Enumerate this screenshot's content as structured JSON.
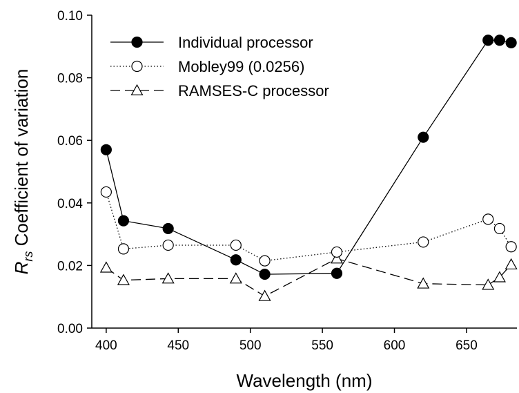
{
  "chart_data": {
    "type": "line",
    "xlabel": "Wavelength (nm)",
    "ylabel": {
      "symbol": "R",
      "subscript": "rs",
      "text": " Coefficient of variation"
    },
    "xlim": [
      390,
      685
    ],
    "ylim": [
      0,
      0.1
    ],
    "x_ticks": [
      400,
      450,
      500,
      550,
      600,
      650
    ],
    "x_tick_labels": [
      "400",
      "450",
      "500",
      "550",
      "600",
      "650"
    ],
    "y_ticks": [
      0,
      0.02,
      0.04,
      0.06,
      0.08,
      0.1
    ],
    "y_tick_labels": [
      "0.00",
      "0.02",
      "0.04",
      "0.06",
      "0.08",
      "0.10"
    ],
    "grid": false,
    "legend_position": "top-left",
    "series": [
      {
        "name": "Individual processor",
        "marker": "filled-circle",
        "line": "solid",
        "x": [
          400,
          412,
          443,
          490,
          510,
          560,
          620,
          665,
          673,
          681
        ],
        "y": [
          0.057,
          0.0343,
          0.0318,
          0.0218,
          0.0172,
          0.0175,
          0.061,
          0.092,
          0.092,
          0.0912
        ]
      },
      {
        "name": "Mobley99 (0.0256)",
        "marker": "open-circle",
        "line": "dotted",
        "x": [
          400,
          412,
          443,
          490,
          510,
          560,
          620,
          665,
          673,
          681
        ],
        "y": [
          0.0435,
          0.0253,
          0.0265,
          0.0265,
          0.0215,
          0.0243,
          0.0275,
          0.0348,
          0.0318,
          0.026
        ]
      },
      {
        "name": "RAMSES-C processor",
        "marker": "open-triangle",
        "line": "dashed",
        "x": [
          400,
          412,
          443,
          490,
          510,
          560,
          620,
          665,
          673,
          681
        ],
        "y": [
          0.0193,
          0.0153,
          0.0158,
          0.0158,
          0.0102,
          0.0222,
          0.0142,
          0.0138,
          0.0162,
          0.0203
        ]
      }
    ]
  }
}
